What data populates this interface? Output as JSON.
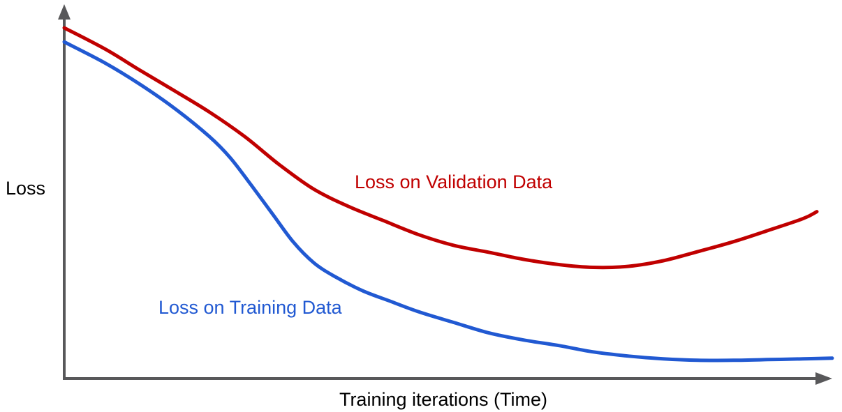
{
  "page": {
    "background_color": "#ffffff",
    "text_color": "#000000"
  },
  "chart_data": {
    "type": "line",
    "xlabel": "Training iterations (Time)",
    "ylabel": "Loss",
    "xlim": [
      0,
      100
    ],
    "ylim": [
      0,
      1
    ],
    "grid": false,
    "legend": "inline-curve-labels",
    "axis_color": "#58585a",
    "axes_have_arrowheads": true,
    "tick_labels": "none",
    "series": [
      {
        "name": "Loss on Validation Data",
        "color": "#c00000",
        "shape": "decreases then rises after minimum (overfitting)",
        "minimum_at_x": 69,
        "points": [
          [
            0,
            1.0
          ],
          [
            5.3,
            0.94
          ],
          [
            9.8,
            0.88
          ],
          [
            14.4,
            0.82
          ],
          [
            18.9,
            0.76
          ],
          [
            23.5,
            0.69
          ],
          [
            28.0,
            0.61
          ],
          [
            32.5,
            0.54
          ],
          [
            37.1,
            0.49
          ],
          [
            41.6,
            0.45
          ],
          [
            46.2,
            0.41
          ],
          [
            50.7,
            0.38
          ],
          [
            55.3,
            0.36
          ],
          [
            59.8,
            0.34
          ],
          [
            64.4,
            0.325
          ],
          [
            68.9,
            0.317
          ],
          [
            73.5,
            0.32
          ],
          [
            78.0,
            0.336
          ],
          [
            82.5,
            0.362
          ],
          [
            87.1,
            0.39
          ],
          [
            91.6,
            0.422
          ],
          [
            96.2,
            0.456
          ],
          [
            98.0,
            0.476
          ]
        ]
      },
      {
        "name": "Loss on Training Data",
        "color": "#2159d2",
        "shape": "monotonically decreasing, plateaus near zero",
        "points": [
          [
            0,
            0.96
          ],
          [
            5.3,
            0.9
          ],
          [
            9.8,
            0.84
          ],
          [
            14.4,
            0.77
          ],
          [
            18.9,
            0.69
          ],
          [
            21.6,
            0.63
          ],
          [
            24.4,
            0.55
          ],
          [
            27.1,
            0.47
          ],
          [
            29.8,
            0.39
          ],
          [
            32.5,
            0.33
          ],
          [
            35.3,
            0.29
          ],
          [
            38.9,
            0.25
          ],
          [
            42.5,
            0.22
          ],
          [
            46.2,
            0.19
          ],
          [
            50.7,
            0.16
          ],
          [
            55.3,
            0.13
          ],
          [
            59.8,
            0.11
          ],
          [
            64.4,
            0.094
          ],
          [
            68.9,
            0.076
          ],
          [
            73.5,
            0.064
          ],
          [
            78.0,
            0.056
          ],
          [
            82.5,
            0.052
          ],
          [
            87.1,
            0.052
          ],
          [
            91.6,
            0.054
          ],
          [
            96.2,
            0.056
          ],
          [
            100,
            0.058
          ]
        ]
      }
    ]
  }
}
